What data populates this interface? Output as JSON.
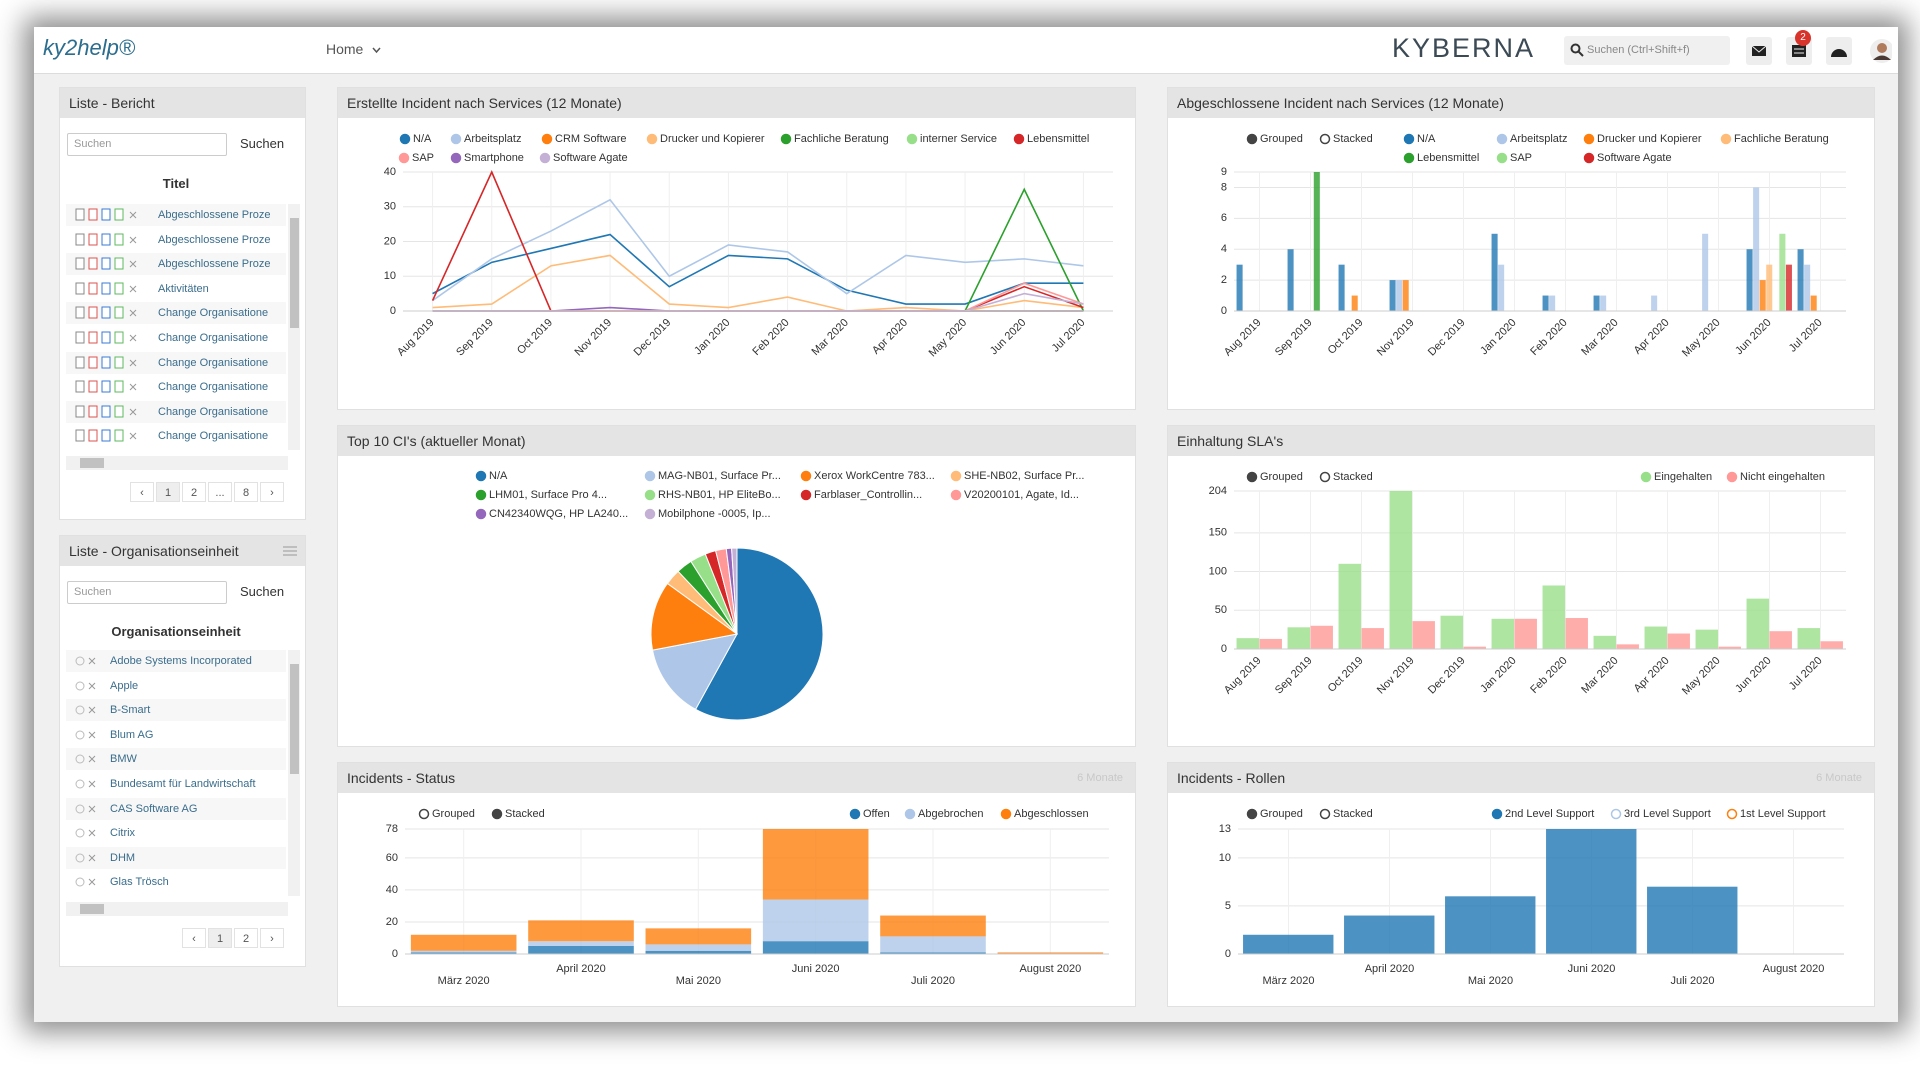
{
  "header": {
    "logo": "ky2help®",
    "nav": "Home",
    "brand": "KYBERNA",
    "search_placeholder": "Suchen (Ctrl+Shift+f)",
    "mail_badge": "2"
  },
  "lists": [
    {
      "title": "Liste - Bericht",
      "search_placeholder": "Suchen",
      "search_button": "Suchen",
      "column": "Titel",
      "rows": [
        "Abgeschlossene Proze",
        "Abgeschlossene Proze",
        "Abgeschlossene Proze",
        "Aktivitäten",
        "Change Organisatione",
        "Change Organisatione",
        "Change Organisatione",
        "Change Organisatione",
        "Change Organisatione",
        "Change Organisatione"
      ],
      "pagination": [
        "‹",
        "1",
        "2",
        "...",
        "8",
        "›"
      ]
    },
    {
      "title": "Liste - Organisationseinheit",
      "search_placeholder": "Suchen",
      "search_button": "Suchen",
      "column": "Organisationseinheit",
      "rows": [
        "Adobe Systems Incorporated",
        "Apple",
        "B-Smart",
        "Blum AG",
        "BMW",
        "Bundesamt für Landwirtschaft",
        "CAS Software AG",
        "Citrix",
        "DHM",
        "Glas Trösch"
      ],
      "pagination": [
        "‹",
        "1",
        "2",
        "›"
      ]
    }
  ],
  "chart_data": [
    {
      "type": "line",
      "title": "Erstellte Incident nach Services (12 Monate)",
      "categories": [
        "Aug 2019",
        "Sep 2019",
        "Oct 2019",
        "Nov 2019",
        "Dec 2019",
        "Jan 2020",
        "Feb 2020",
        "Mar 2020",
        "Apr 2020",
        "May 2020",
        "Jun 2020",
        "Jul 2020"
      ],
      "series": [
        {
          "name": "N/A",
          "color": "#1f77b4",
          "values": [
            5,
            14,
            18,
            22,
            7,
            16,
            15,
            6,
            2,
            2,
            8,
            8
          ]
        },
        {
          "name": "Arbeitsplatz",
          "color": "#aec7e8",
          "values": [
            3,
            15,
            23,
            32,
            10,
            19,
            17,
            5,
            16,
            14,
            15,
            13
          ]
        },
        {
          "name": "CRM Software",
          "color": "#ff7f0e",
          "values": [
            0,
            0,
            0,
            0,
            0,
            0,
            0,
            0,
            0,
            0,
            0,
            0
          ]
        },
        {
          "name": "Drucker und Kopierer",
          "color": "#ffbb78",
          "values": [
            1,
            2,
            13,
            16,
            2,
            1,
            4,
            0,
            1,
            0,
            3,
            1
          ]
        },
        {
          "name": "Fachliche Beratung",
          "color": "#2ca02c",
          "values": [
            0,
            0,
            0,
            0,
            0,
            0,
            0,
            0,
            0,
            0,
            35,
            0
          ]
        },
        {
          "name": "interner Service",
          "color": "#98df8a",
          "values": [
            0,
            0,
            0,
            0,
            0,
            0,
            0,
            0,
            0,
            0,
            0,
            0
          ]
        },
        {
          "name": "Lebensmittel",
          "color": "#d62728",
          "values": [
            3,
            40,
            0,
            0,
            0,
            0,
            0,
            0,
            0,
            0,
            7,
            1
          ]
        },
        {
          "name": "SAP",
          "color": "#ff9896",
          "values": [
            0,
            0,
            0,
            0,
            0,
            0,
            0,
            0,
            0,
            0,
            8,
            2
          ]
        },
        {
          "name": "Smartphone",
          "color": "#9467bd",
          "values": [
            0,
            0,
            0,
            1,
            0,
            0,
            0,
            0,
            0,
            0,
            0,
            0
          ]
        },
        {
          "name": "Software Agate",
          "color": "#c5b0d5",
          "values": [
            0,
            0,
            0,
            0,
            0,
            0,
            0,
            0,
            0,
            0,
            5,
            2
          ]
        }
      ],
      "ylim": [
        0,
        40
      ],
      "yticks": [
        0,
        10,
        20,
        30,
        40
      ],
      "grid": true
    },
    {
      "type": "bar",
      "title": "Abgeschlossene Incident nach Services (12 Monate)",
      "controls": [
        "Grouped",
        "Stacked"
      ],
      "stacked": false,
      "categories": [
        "Aug 2019",
        "Sep 2019",
        "Oct 2019",
        "Nov 2019",
        "Dec 2019",
        "Jan 2020",
        "Feb 2020",
        "Mar 2020",
        "Apr 2020",
        "May 2020",
        "Jun 2020",
        "Jul 2020"
      ],
      "series": [
        {
          "name": "N/A",
          "color": "#1f77b4",
          "values": [
            3,
            4,
            3,
            2,
            0,
            5,
            1,
            1,
            0,
            0,
            4,
            4
          ]
        },
        {
          "name": "Arbeitsplatz",
          "color": "#aec7e8",
          "values": [
            0,
            0,
            0,
            2,
            0,
            3,
            1,
            1,
            1,
            5,
            8,
            3
          ]
        },
        {
          "name": "Drucker und Kopierer",
          "color": "#ff7f0e",
          "values": [
            0,
            0,
            1,
            2,
            0,
            0,
            0,
            0,
            0,
            0,
            2,
            1
          ]
        },
        {
          "name": "Fachliche Beratung",
          "color": "#ffbb78",
          "values": [
            0,
            0,
            0,
            0,
            0,
            0,
            0,
            0,
            0,
            0,
            3,
            0
          ]
        },
        {
          "name": "Lebensmittel",
          "color": "#2ca02c",
          "values": [
            0,
            9,
            0,
            0,
            0,
            0,
            0,
            0,
            0,
            0,
            0,
            0
          ]
        },
        {
          "name": "SAP",
          "color": "#98df8a",
          "values": [
            0,
            0,
            0,
            0,
            0,
            0,
            0,
            0,
            0,
            0,
            5,
            0
          ]
        },
        {
          "name": "Software Agate",
          "color": "#d62728",
          "values": [
            0,
            0,
            0,
            0,
            0,
            0,
            0,
            0,
            0,
            0,
            3,
            0
          ]
        }
      ],
      "ylim": [
        0,
        9
      ],
      "yticks": [
        0,
        2,
        4,
        6,
        8,
        9
      ],
      "grid": true
    },
    {
      "type": "pie",
      "title": "Top 10 CI's (aktueller Monat)",
      "categories": [
        "N/A",
        "MAG-NB01, Surface Pr...",
        "Xerox WorkCentre 783...",
        "SHE-NB02, Surface Pr...",
        "LHM01, Surface Pro 4...",
        "RHS-NB01, HP EliteBo...",
        "Farblaser_Controllin...",
        "V20200101, Agate, Id...",
        "CN42340WQG, HP LA240...",
        "Mobilphone -0005, Ip..."
      ],
      "values": [
        58,
        14,
        13,
        3,
        3,
        3,
        2,
        2,
        1,
        1
      ],
      "colors": [
        "#1f77b4",
        "#aec7e8",
        "#ff7f0e",
        "#ffbb78",
        "#2ca02c",
        "#98df8a",
        "#d62728",
        "#ff9896",
        "#9467bd",
        "#c5b0d5"
      ]
    },
    {
      "type": "bar",
      "title": "Einhaltung SLA's",
      "controls": [
        "Grouped",
        "Stacked"
      ],
      "stacked": false,
      "categories": [
        "Aug 2019",
        "Sep 2019",
        "Oct 2019",
        "Nov 2019",
        "Dec 2019",
        "Jan 2020",
        "Feb 2020",
        "Mar 2020",
        "Apr 2020",
        "May 2020",
        "Jun 2020",
        "Jul 2020"
      ],
      "series": [
        {
          "name": "Eingehalten",
          "color": "#98df8a",
          "values": [
            14,
            28,
            110,
            204,
            43,
            39,
            82,
            17,
            29,
            25,
            65,
            27
          ]
        },
        {
          "name": "Nicht eingehalten",
          "color": "#ff9896",
          "values": [
            13,
            30,
            27,
            36,
            3,
            39,
            40,
            6,
            20,
            3,
            23,
            10
          ]
        }
      ],
      "ylim": [
        0,
        204
      ],
      "yticks": [
        0,
        50,
        100,
        150,
        204
      ],
      "grid": true
    },
    {
      "type": "bar",
      "title": "Incidents - Status",
      "subtitle": "6 Monate",
      "controls": [
        "Grouped",
        "Stacked"
      ],
      "stacked": true,
      "categories": [
        "März 2020",
        "April 2020",
        "Mai 2020",
        "Juni 2020",
        "Juli 2020",
        "August 2020"
      ],
      "series": [
        {
          "name": "Offen",
          "color": "#1f77b4",
          "values": [
            1,
            5,
            2,
            8,
            1,
            0
          ]
        },
        {
          "name": "Abgebrochen",
          "color": "#aec7e8",
          "values": [
            1,
            3,
            4,
            26,
            10,
            0
          ]
        },
        {
          "name": "Abgeschlossen",
          "color": "#ff7f0e",
          "values": [
            10,
            13,
            10,
            44,
            13,
            1
          ]
        }
      ],
      "ylim": [
        0,
        78
      ],
      "yticks": [
        0,
        20,
        40,
        60,
        78
      ],
      "grid": true
    },
    {
      "type": "bar",
      "title": "Incidents - Rollen",
      "subtitle": "6 Monate",
      "controls": [
        "Grouped",
        "Stacked"
      ],
      "stacked": false,
      "categories": [
        "März 2020",
        "April 2020",
        "Mai 2020",
        "Juni 2020",
        "Juli 2020",
        "August 2020"
      ],
      "series": [
        {
          "name": "2nd Level Support",
          "color": "#1f77b4",
          "values": [
            2,
            4,
            6,
            13,
            7,
            0
          ]
        },
        {
          "name": "3rd Level Support",
          "color": "#aec7e8",
          "enabled": false
        },
        {
          "name": "1st Level Support",
          "color": "#ff7f0e",
          "enabled": false
        }
      ],
      "ylim": [
        0,
        13
      ],
      "yticks": [
        0,
        5,
        10,
        13
      ],
      "grid": true
    }
  ]
}
